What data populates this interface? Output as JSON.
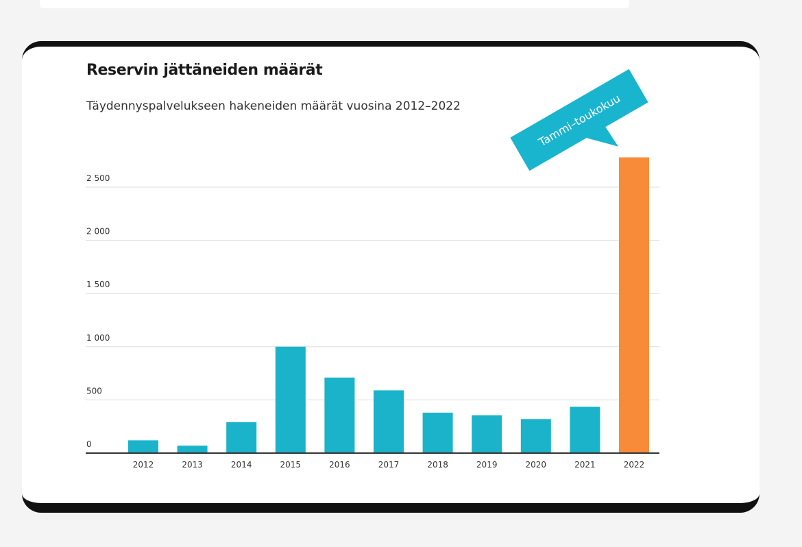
{
  "chart_data": {
    "type": "bar",
    "title": "Reservin jättäneiden määrät",
    "subtitle": "Täydennyspalvelukseen hakeneiden määrät vuosina 2012–2022",
    "categories": [
      "2012",
      "2013",
      "2014",
      "2015",
      "2016",
      "2017",
      "2018",
      "2019",
      "2020",
      "2021",
      "2022"
    ],
    "values": [
      120,
      70,
      290,
      1000,
      710,
      590,
      380,
      355,
      320,
      435,
      2780
    ],
    "ylim": [
      0,
      2800
    ],
    "yticks": [
      0,
      500,
      1000,
      1500,
      2000,
      2500
    ],
    "ytick_labels": [
      "0",
      "500",
      "1 000",
      "1 500",
      "2 000",
      "2 500"
    ],
    "grid": true,
    "xlabel": "",
    "ylabel": "",
    "colors": {
      "bar": "#1ab3c9",
      "highlight": "#f78b3a",
      "callout": "#19b5cf",
      "gridline": "#dddddd",
      "axis": "#333333"
    },
    "highlight_index": 10,
    "annotation": {
      "text": "Tammi–toukokuu"
    }
  }
}
